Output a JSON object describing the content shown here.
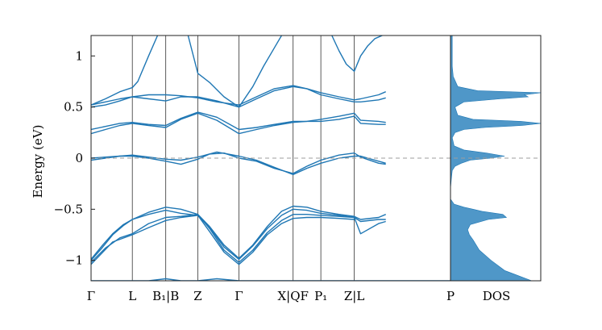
{
  "chart_data": {
    "type": "line",
    "title": "",
    "ylabel": "Energy (eV)",
    "xlabel": "",
    "ylim": [
      -1.2,
      1.2
    ],
    "yticks": [
      {
        "value": 1,
        "label": "1"
      },
      {
        "value": 0.5,
        "label": "0.5"
      },
      {
        "value": 0,
        "label": "0"
      },
      {
        "value": -0.5,
        "label": "−0.5"
      },
      {
        "value": -1,
        "label": "−1"
      }
    ],
    "kpath": {
      "range": [
        0,
        1
      ],
      "tick_positions": [
        0,
        0.1148,
        0.2078,
        0.2971,
        0.4114,
        0.5621,
        0.6393,
        0.7323
      ],
      "tick_labels": [
        "Γ",
        "L",
        "B₁|B",
        "Z",
        "Γ",
        "X|QF",
        "P₁",
        "Z|L"
      ],
      "end_label": "P",
      "segment_breaks": [
        0.2078,
        0.5621,
        0.7323
      ]
    },
    "fermi_level": 0,
    "dos_label": "DOS",
    "grid": false,
    "colors": {
      "bands": "#1f77b4",
      "dos_fill": "#4f97c8",
      "fermi_line": "#9e9e9e",
      "axes": "#222222",
      "tick_lines": "#333333"
    },
    "series": [
      {
        "x": [
          0,
          0.06,
          0.1148,
          0.16,
          0.2078,
          0.25,
          0.2971,
          0.35,
          0.4114,
          0.46,
          0.51,
          0.5621,
          0.6,
          0.6393,
          0.69,
          0.7323,
          0.77,
          0.8,
          0.82,
          1.0
        ],
        "y": [
          -1.2,
          -1.2,
          -1.2,
          -1.2,
          -1.18,
          -1.2,
          -1.2,
          -1.18,
          -1.2,
          -1.2,
          -1.2,
          -1.2,
          -1.2,
          -1.2,
          -1.2,
          -1.2,
          -1.2,
          -1.2,
          -1.2,
          -1.2
        ]
      },
      {
        "x": [
          0,
          0.03,
          0.06,
          0.09,
          0.1148,
          0.16,
          0.2078,
          0.25,
          0.2971,
          0.33,
          0.37,
          0.4114,
          0.45,
          0.49,
          0.53,
          0.5621,
          0.6,
          0.6393,
          0.69,
          0.7323,
          0.75,
          0.8,
          0.82
        ],
        "y": [
          -1.0,
          -0.88,
          -0.75,
          -0.66,
          -0.6,
          -0.53,
          -0.48,
          -0.5,
          -0.55,
          -0.67,
          -0.85,
          -0.98,
          -0.85,
          -0.67,
          -0.52,
          -0.47,
          -0.48,
          -0.52,
          -0.55,
          -0.57,
          -0.6,
          -0.58,
          -0.55
        ]
      },
      {
        "x": [
          0,
          0.03,
          0.06,
          0.09,
          0.1148,
          0.16,
          0.2078,
          0.25,
          0.2971,
          0.33,
          0.37,
          0.4114,
          0.45,
          0.49,
          0.53,
          0.5621,
          0.6,
          0.6393,
          0.69,
          0.7323,
          0.75,
          0.8,
          0.82
        ],
        "y": [
          -0.99,
          -0.86,
          -0.74,
          -0.65,
          -0.6,
          -0.55,
          -0.51,
          -0.54,
          -0.56,
          -0.68,
          -0.87,
          -0.99,
          -0.86,
          -0.69,
          -0.56,
          -0.5,
          -0.51,
          -0.54,
          -0.56,
          -0.58,
          -0.62,
          -0.6,
          -0.6
        ]
      },
      {
        "x": [
          0,
          0.04,
          0.08,
          0.1148,
          0.16,
          0.2078,
          0.25,
          0.2971,
          0.33,
          0.37,
          0.4114,
          0.45,
          0.49,
          0.53,
          0.5621,
          0.6,
          0.6393,
          0.69,
          0.7323,
          0.75,
          0.8,
          0.82
        ],
        "y": [
          -1.02,
          -0.88,
          -0.78,
          -0.74,
          -0.64,
          -0.58,
          -0.57,
          -0.55,
          -0.69,
          -0.9,
          -1.02,
          -0.9,
          -0.73,
          -0.61,
          -0.55,
          -0.55,
          -0.56,
          -0.57,
          -0.58,
          -0.74,
          -0.64,
          -0.62
        ]
      },
      {
        "x": [
          0,
          0.03,
          0.06,
          0.1148,
          0.16,
          0.2078,
          0.25,
          0.2971,
          0.33,
          0.37,
          0.4114,
          0.45,
          0.49,
          0.53,
          0.5621,
          0.6,
          0.6393,
          0.69,
          0.7323
        ],
        "y": [
          -1.04,
          -0.93,
          -0.82,
          -0.75,
          -0.68,
          -0.61,
          -0.58,
          -0.56,
          -0.72,
          -0.92,
          -1.04,
          -0.92,
          -0.75,
          -0.64,
          -0.59,
          -0.58,
          -0.58,
          -0.59,
          -0.6
        ]
      },
      {
        "x": [
          0,
          0.04,
          0.08,
          0.1148,
          0.16,
          0.2078,
          0.25,
          0.2971,
          0.33,
          0.37,
          0.4114,
          0.46,
          0.51,
          0.5621,
          0.6,
          0.6393,
          0.69,
          0.7323,
          0.75,
          0.8,
          0.82
        ],
        "y": [
          -0.02,
          0.0,
          0.02,
          0.02,
          0.0,
          -0.03,
          -0.06,
          -0.01,
          0.04,
          0.05,
          0.0,
          -0.03,
          -0.1,
          -0.15,
          -0.08,
          -0.02,
          0.03,
          0.05,
          0.01,
          -0.05,
          -0.06
        ]
      },
      {
        "x": [
          0,
          0.04,
          0.08,
          0.1148,
          0.16,
          0.2078,
          0.25,
          0.2971,
          0.35,
          0.4114,
          0.46,
          0.51,
          0.5621,
          0.6,
          0.6393,
          0.69,
          0.7323,
          0.75,
          0.8,
          0.82
        ],
        "y": [
          0.0,
          0.01,
          0.02,
          0.03,
          0.01,
          -0.01,
          -0.02,
          0.01,
          0.06,
          0.02,
          -0.02,
          -0.09,
          -0.16,
          -0.1,
          -0.05,
          0.0,
          0.02,
          0.02,
          -0.03,
          -0.05
        ]
      },
      {
        "x": [
          0,
          0.04,
          0.08,
          0.1148,
          0.16,
          0.2078,
          0.25,
          0.2971,
          0.35,
          0.4114,
          0.46,
          0.51,
          0.5621,
          0.6,
          0.6393,
          0.69,
          0.7323,
          0.75,
          0.8,
          0.82
        ],
        "y": [
          0.24,
          0.28,
          0.32,
          0.34,
          0.32,
          0.3,
          0.38,
          0.44,
          0.37,
          0.24,
          0.28,
          0.32,
          0.35,
          0.36,
          0.38,
          0.41,
          0.44,
          0.37,
          0.36,
          0.35
        ]
      },
      {
        "x": [
          0,
          0.04,
          0.08,
          0.1148,
          0.16,
          0.2078,
          0.25,
          0.2971,
          0.35,
          0.4114,
          0.46,
          0.51,
          0.5621,
          0.6,
          0.6393,
          0.69,
          0.7323,
          0.75,
          0.8,
          0.82
        ],
        "y": [
          0.28,
          0.31,
          0.34,
          0.35,
          0.33,
          0.32,
          0.39,
          0.45,
          0.4,
          0.28,
          0.3,
          0.33,
          0.36,
          0.36,
          0.36,
          0.38,
          0.41,
          0.34,
          0.33,
          0.33
        ]
      },
      {
        "x": [
          0,
          0.04,
          0.08,
          0.1148,
          0.16,
          0.2078,
          0.25,
          0.2971,
          0.35,
          0.4114,
          0.46,
          0.51,
          0.5621,
          0.6,
          0.6393,
          0.69,
          0.7323,
          0.75,
          0.8,
          0.82
        ],
        "y": [
          0.5,
          0.52,
          0.56,
          0.6,
          0.58,
          0.56,
          0.6,
          0.6,
          0.56,
          0.5,
          0.58,
          0.66,
          0.7,
          0.68,
          0.62,
          0.58,
          0.55,
          0.55,
          0.57,
          0.59
        ]
      },
      {
        "x": [
          0,
          0.04,
          0.08,
          0.1148,
          0.16,
          0.2078,
          0.25,
          0.2971,
          0.35,
          0.4114,
          0.46,
          0.51,
          0.5621,
          0.6,
          0.6393,
          0.69,
          0.7323,
          0.75,
          0.8,
          0.82
        ],
        "y": [
          0.52,
          0.55,
          0.58,
          0.6,
          0.62,
          0.62,
          0.61,
          0.59,
          0.55,
          0.52,
          0.6,
          0.68,
          0.71,
          0.68,
          0.64,
          0.6,
          0.57,
          0.58,
          0.62,
          0.65
        ]
      },
      {
        "x": [
          0,
          0.04,
          0.08,
          0.1148,
          0.13,
          0.16,
          0.185
        ],
        "y": [
          0.52,
          0.58,
          0.65,
          0.69,
          0.75,
          1.0,
          1.2
        ]
      },
      {
        "x": [
          0.27,
          0.2971,
          0.33,
          0.37,
          0.4114,
          0.45,
          0.48,
          0.51,
          0.53
        ],
        "y": [
          1.2,
          0.83,
          0.74,
          0.6,
          0.5,
          0.7,
          0.9,
          1.08,
          1.2
        ]
      },
      {
        "x": [
          0.67,
          0.69,
          0.71,
          0.7323,
          0.75,
          0.77,
          0.79,
          0.81
        ],
        "y": [
          1.2,
          1.05,
          0.92,
          0.85,
          1.0,
          1.1,
          1.17,
          1.2
        ]
      }
    ],
    "dos": {
      "energy": [
        -1.2,
        -1.1,
        -1.0,
        -0.9,
        -0.8,
        -0.75,
        -0.7,
        -0.65,
        -0.6,
        -0.58,
        -0.55,
        -0.52,
        -0.5,
        -0.48,
        -0.45,
        -0.4,
        -0.3,
        -0.2,
        -0.12,
        -0.08,
        -0.05,
        -0.02,
        0.0,
        0.02,
        0.05,
        0.08,
        0.12,
        0.2,
        0.25,
        0.28,
        0.3,
        0.32,
        0.34,
        0.36,
        0.38,
        0.42,
        0.5,
        0.55,
        0.58,
        0.6,
        0.62,
        0.64,
        0.66,
        0.7,
        0.8,
        0.9,
        1.0,
        1.2
      ],
      "value": [
        0.9,
        0.6,
        0.45,
        0.32,
        0.25,
        0.21,
        0.19,
        0.22,
        0.42,
        0.62,
        0.58,
        0.35,
        0.25,
        0.15,
        0.04,
        0.0,
        0.0,
        0.01,
        0.02,
        0.05,
        0.12,
        0.22,
        0.45,
        0.6,
        0.4,
        0.15,
        0.04,
        0.02,
        0.05,
        0.15,
        0.38,
        0.8,
        1.0,
        0.78,
        0.25,
        0.08,
        0.05,
        0.15,
        0.55,
        0.86,
        0.82,
        1.0,
        0.3,
        0.08,
        0.03,
        0.02,
        0.02,
        0.02
      ]
    }
  }
}
